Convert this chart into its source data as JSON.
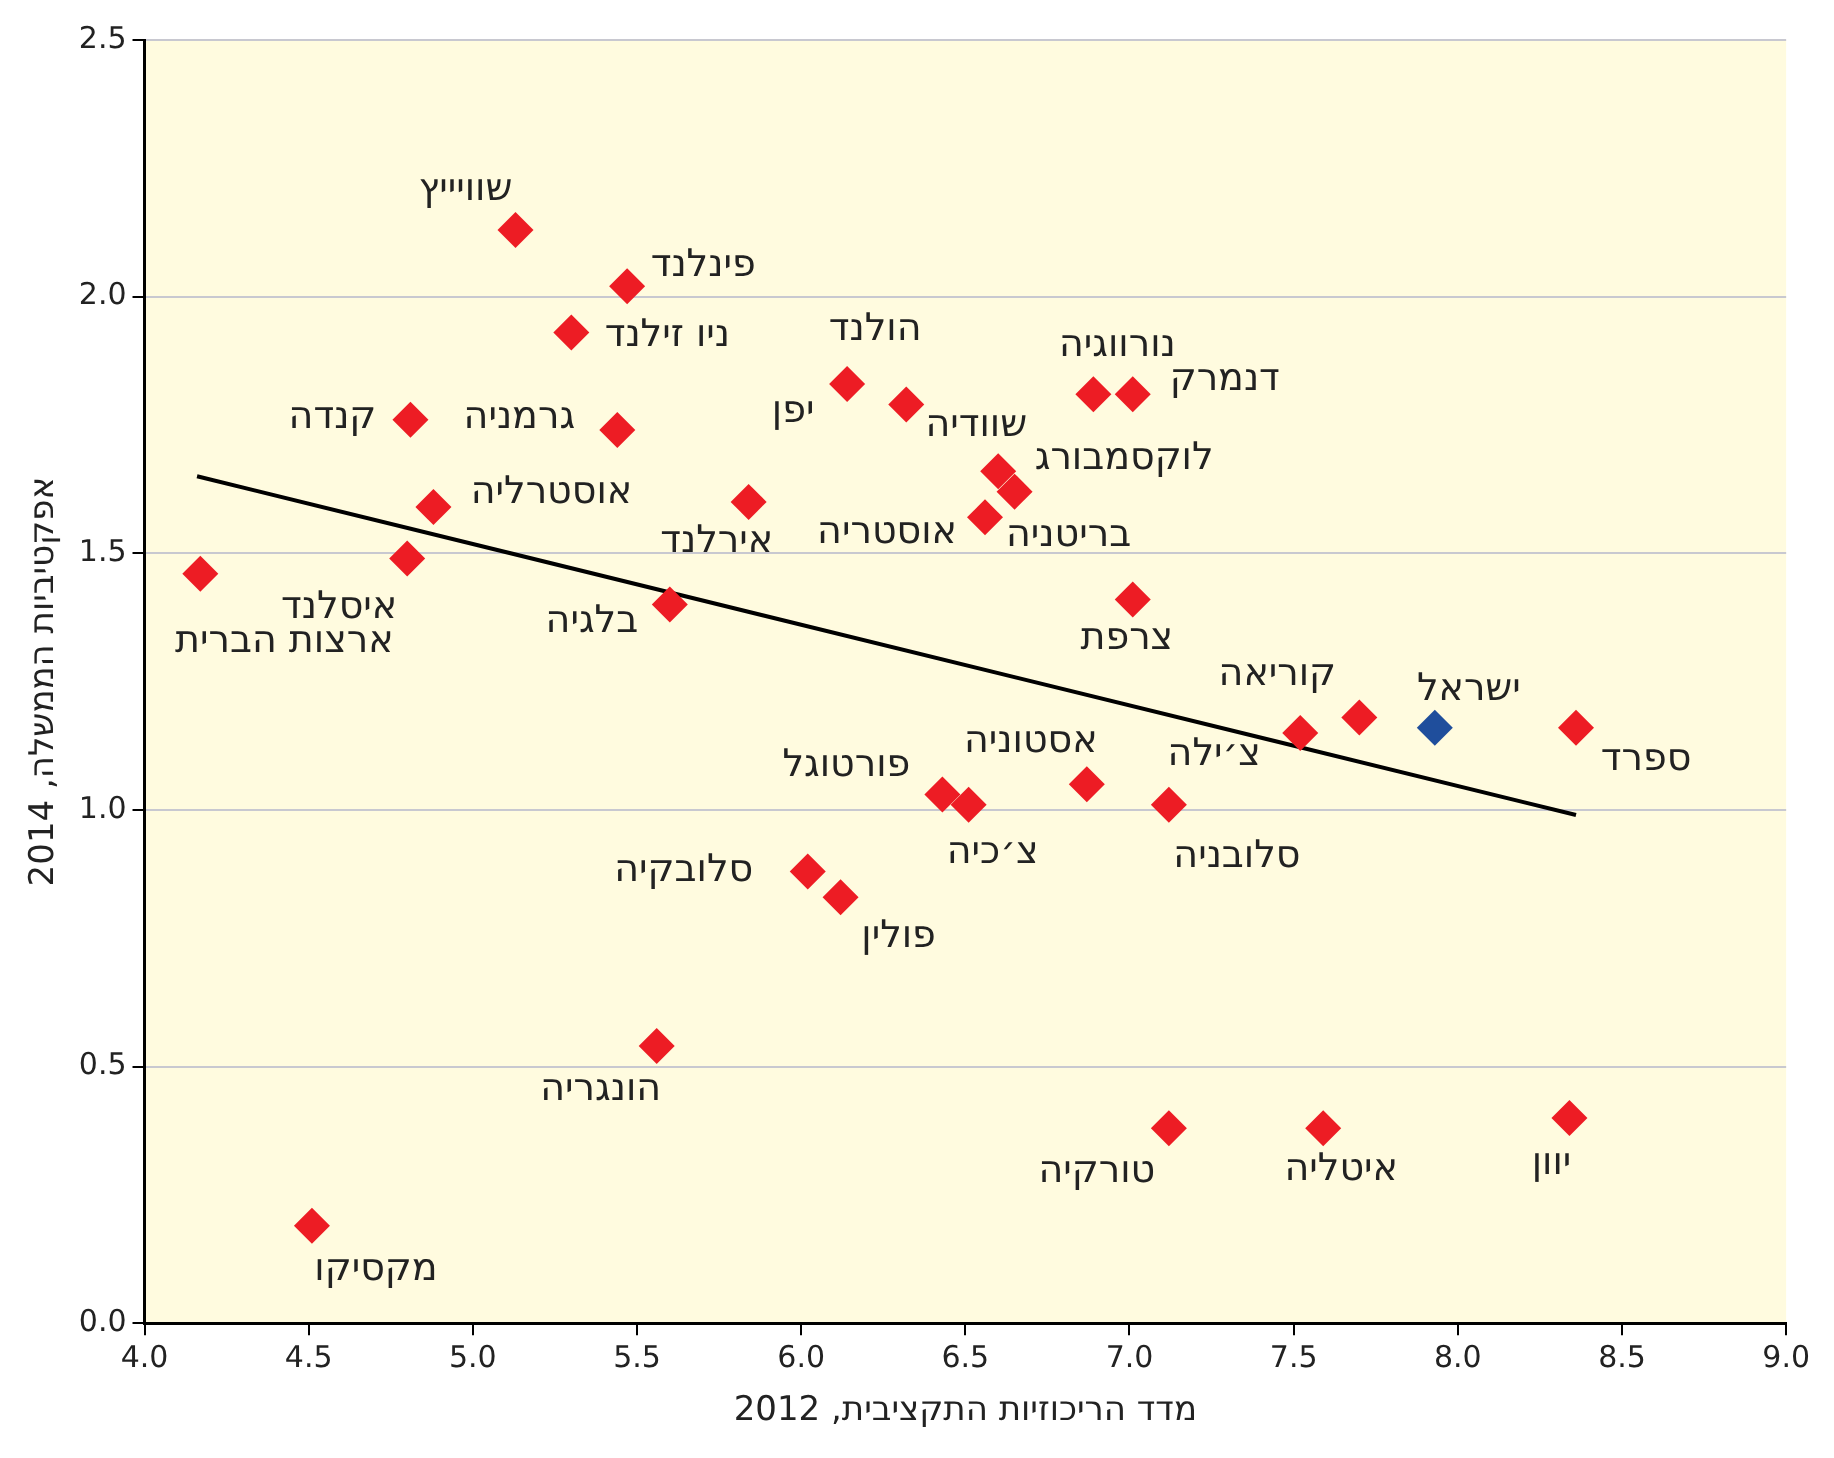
{
  "chart_data": {
    "type": "scatter",
    "xlabel": "מדד הריכוזיות התקציבית, 2012",
    "ylabel": "אפקטיביות הממשלה, 2014",
    "xlim": [
      4.0,
      9.0
    ],
    "xticks": [
      {
        "value": 4,
        "label": "4.0"
      },
      {
        "value": 4.5,
        "label": "4.5"
      },
      {
        "value": 5,
        "label": "5.0"
      },
      {
        "value": 5.5,
        "label": "5.5"
      },
      {
        "value": 6,
        "label": "6.0"
      },
      {
        "value": 6.5,
        "label": "6.5"
      },
      {
        "value": 7,
        "label": "7.0"
      },
      {
        "value": 7.5,
        "label": "7.5"
      },
      {
        "value": 8,
        "label": "8.0"
      },
      {
        "value": 8.5,
        "label": "8.5"
      },
      {
        "value": 9,
        "label": "9.0"
      }
    ],
    "ylim": [
      0,
      2.5
    ],
    "yticks": [
      {
        "value": 0,
        "label": "0.0"
      },
      {
        "value": 0.5,
        "label": "0.5"
      },
      {
        "value": 1,
        "label": "1.0"
      },
      {
        "value": 1.5,
        "label": "1.5"
      },
      {
        "value": 2,
        "label": "2.0"
      },
      {
        "value": 2.5,
        "label": "2.5"
      }
    ],
    "grid": "y",
    "legend": false,
    "series": [
      {
        "marker": "diamond",
        "x": [
          4.17,
          4.8,
          4.88,
          4.81,
          4.51,
          5.13,
          5.47,
          5.3,
          5.44,
          5.6,
          5.84,
          5.56,
          6.14,
          6.32,
          6.02,
          6.12,
          6.43,
          6.51,
          6.6,
          6.65,
          6.56,
          6.89,
          7.01,
          7.01,
          6.87,
          7.12,
          7.12,
          7.59,
          7.52,
          7.7,
          7.93,
          8.36,
          8.34
        ],
        "values": [
          1.46,
          1.49,
          1.59,
          1.76,
          0.19,
          2.13,
          2.02,
          1.93,
          1.74,
          1.4,
          1.6,
          0.54,
          1.83,
          1.79,
          0.88,
          0.83,
          1.03,
          1.01,
          1.66,
          1.62,
          1.57,
          1.81,
          1.81,
          1.41,
          1.05,
          1.01,
          0.38,
          0.38,
          1.15,
          1.18,
          1.16,
          1.16,
          0.4
        ],
        "colors": [
          "#ed1c24",
          "#ed1c24",
          "#ed1c24",
          "#ed1c24",
          "#ed1c24",
          "#ed1c24",
          "#ed1c24",
          "#ed1c24",
          "#ed1c24",
          "#ed1c24",
          "#ed1c24",
          "#ed1c24",
          "#ed1c24",
          "#ed1c24",
          "#ed1c24",
          "#ed1c24",
          "#ed1c24",
          "#ed1c24",
          "#ed1c24",
          "#ed1c24",
          "#ed1c24",
          "#ed1c24",
          "#ed1c24",
          "#ed1c24",
          "#ed1c24",
          "#ed1c24",
          "#ed1c24",
          "#ed1c24",
          "#ed1c24",
          "#ed1c24",
          "#1f4e9c",
          "#ed1c24",
          "#ed1c24"
        ]
      },
      {
        "type": "line",
        "marker": "none",
        "x": [
          4.16,
          8.36
        ],
        "values": [
          1.65,
          0.99
        ],
        "color": "#000000"
      }
    ],
    "annotations": [
      {
        "text": "ארצות הברית",
        "x": 4.17,
        "y": 1.46
      },
      {
        "text": "איסלנד",
        "x": 4.8,
        "y": 1.49
      },
      {
        "text": "אוסטרליה",
        "x": 4.88,
        "y": 1.59
      },
      {
        "text": "קנדה",
        "x": 4.81,
        "y": 1.76
      },
      {
        "text": "מקסיקו",
        "x": 4.51,
        "y": 0.19
      },
      {
        "text": "שוויייץ",
        "x": 5.13,
        "y": 2.13
      },
      {
        "text": "פינלנד",
        "x": 5.47,
        "y": 2.02
      },
      {
        "text": "ניו זילנד",
        "x": 5.3,
        "y": 1.93
      },
      {
        "text": "גרמניה",
        "x": 5.44,
        "y": 1.74
      },
      {
        "text": "בלגיה",
        "x": 5.6,
        "y": 1.4
      },
      {
        "text": "אירלנד",
        "x": 5.84,
        "y": 1.6
      },
      {
        "text": "הונגריה",
        "x": 5.56,
        "y": 0.54
      },
      {
        "text": "יפן",
        "x": 6.14,
        "y": 1.83
      },
      {
        "text": "הולנד",
        "x": 6.14,
        "y": 1.83
      },
      {
        "text": "שוודיה",
        "x": 6.32,
        "y": 1.79
      },
      {
        "text": "סלובקיה",
        "x": 6.02,
        "y": 0.88
      },
      {
        "text": "פולין",
        "x": 6.12,
        "y": 0.83
      },
      {
        "text": "פורטוגל",
        "x": 6.43,
        "y": 1.03
      },
      {
        "text": "צ׳כיה",
        "x": 6.51,
        "y": 1.01
      },
      {
        "text": "לוקסמבורג",
        "x": 6.6,
        "y": 1.66
      },
      {
        "text": "בריטניה",
        "x": 6.65,
        "y": 1.62
      },
      {
        "text": "אוסטריה",
        "x": 6.56,
        "y": 1.57
      },
      {
        "text": "נורווגיה",
        "x": 6.89,
        "y": 1.81
      },
      {
        "text": "דנמרק",
        "x": 7.01,
        "y": 1.81
      },
      {
        "text": "צרפת",
        "x": 7.01,
        "y": 1.41
      },
      {
        "text": "אסטוניה",
        "x": 6.87,
        "y": 1.05
      },
      {
        "text": "סלובניה",
        "x": 7.12,
        "y": 1.01
      },
      {
        "text": "טורקיה",
        "x": 7.12,
        "y": 0.38
      },
      {
        "text": "איטליה",
        "x": 7.59,
        "y": 0.38
      },
      {
        "text": "צ׳ילה",
        "x": 7.52,
        "y": 1.15
      },
      {
        "text": "קוריאה",
        "x": 7.7,
        "y": 1.18
      },
      {
        "text": "ישראל",
        "x": 7.93,
        "y": 1.16
      },
      {
        "text": "ספרד",
        "x": 8.36,
        "y": 1.16
      },
      {
        "text": "יוון",
        "x": 8.34,
        "y": 0.4
      }
    ]
  }
}
